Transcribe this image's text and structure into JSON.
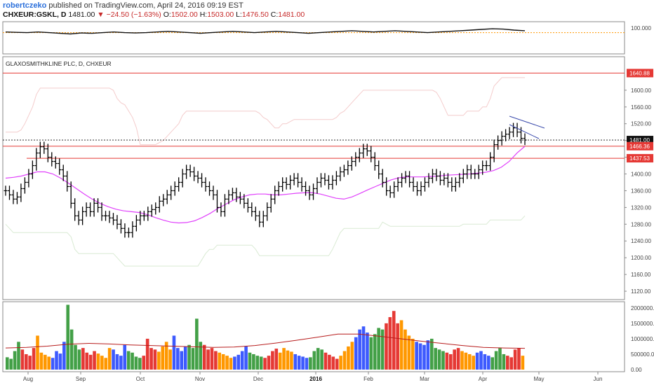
{
  "header": {
    "author": "robertczeko",
    "published_text": "published on TradingView.com, April 24, 2016 09:19 EST",
    "symbol": "CHXEUR:GSKL, D",
    "last": "1481.00",
    "change": "−24.50 (−1.63%)",
    "open_label": "O:",
    "open": "1502.00",
    "high_label": "H:",
    "high": "1503.00",
    "low_label": "L:",
    "low": "1476.50",
    "close_label": "C:",
    "close": "1481.00"
  },
  "price_pane": {
    "title": "GLAXOSMITHKLINE PLC, D, CHXEUR",
    "price_badges": [
      {
        "value": "1640.88",
        "color": "#e53935"
      },
      {
        "value": "1481.00",
        "color": "#111111"
      },
      {
        "value": "1466.36",
        "color": "#e53935"
      },
      {
        "value": "1437.53",
        "color": "#e53935"
      }
    ]
  },
  "colors": {
    "bars": "#000000",
    "ma": "#e040fb",
    "channel": "#d9ead3",
    "channel2": "#f4cccc",
    "hline": "#e53935",
    "trend": "#3949ab",
    "vol_green": "#43a047",
    "vol_red": "#e53935",
    "vol_orange": "#ff9800",
    "vol_blue": "#3d5afe",
    "vol_ma": "#b71c1c",
    "osc": "#111111",
    "osc_ref": "#ff9800"
  },
  "chart_data": [
    {
      "type": "line",
      "title": "",
      "x_ticks": [
        "Aug",
        "Sep",
        "Oct",
        "Nov",
        "Dec",
        "2016",
        "Feb",
        "Mar",
        "Apr",
        "May",
        "Jun"
      ],
      "y_ticks": [
        "100.000"
      ],
      "ylim": [
        60,
        110
      ],
      "reference_level": 93,
      "series": [
        {
          "values": [
            94,
            93.5,
            93,
            94,
            93,
            92,
            91,
            92.5,
            92,
            93,
            94,
            93,
            92.5,
            93,
            94,
            95,
            94,
            93,
            92,
            93,
            94,
            95,
            94,
            93,
            94,
            95,
            94,
            93,
            92,
            93,
            94,
            95,
            96,
            95,
            94,
            95,
            96,
            95,
            94,
            93,
            94,
            95,
            96,
            97,
            98,
            99,
            98.5,
            97,
            96
          ]
        }
      ]
    },
    {
      "type": "bar",
      "title": "",
      "x_ticks": [
        "Aug",
        "Sep",
        "Oct",
        "Nov",
        "Dec",
        "2016",
        "Feb",
        "Mar",
        "Apr",
        "May",
        "Jun"
      ],
      "y_ticks": [
        "1120.00",
        "1160.00",
        "1200.00",
        "1240.00",
        "1280.00",
        "1320.00",
        "1360.00",
        "1400.00",
        "1440.00",
        "1480.00",
        "1520.00",
        "1560.00",
        "1600.00"
      ],
      "ylim": [
        1100,
        1680
      ],
      "close": [
        1360,
        1350,
        1340,
        1345,
        1365,
        1380,
        1400,
        1420,
        1450,
        1465,
        1460,
        1440,
        1430,
        1425,
        1410,
        1395,
        1370,
        1330,
        1300,
        1290,
        1310,
        1320,
        1310,
        1330,
        1320,
        1300,
        1300,
        1295,
        1290,
        1280,
        1270,
        1260,
        1260,
        1275,
        1290,
        1300,
        1300,
        1310,
        1315,
        1320,
        1335,
        1340,
        1350,
        1360,
        1370,
        1380,
        1400,
        1410,
        1405,
        1395,
        1390,
        1380,
        1370,
        1360,
        1350,
        1320,
        1310,
        1340,
        1350,
        1355,
        1345,
        1340,
        1330,
        1320,
        1310,
        1300,
        1285,
        1300,
        1320,
        1340,
        1360,
        1370,
        1380,
        1375,
        1385,
        1390,
        1380,
        1370,
        1360,
        1350,
        1365,
        1380,
        1390,
        1385,
        1375,
        1385,
        1395,
        1405,
        1410,
        1420,
        1430,
        1440,
        1450,
        1460,
        1455,
        1440,
        1420,
        1400,
        1380,
        1360,
        1355,
        1370,
        1380,
        1390,
        1395,
        1380,
        1370,
        1360,
        1370,
        1380,
        1390,
        1400,
        1395,
        1385,
        1390,
        1380,
        1370,
        1380,
        1390,
        1400,
        1410,
        1400,
        1400,
        1410,
        1420,
        1420,
        1440,
        1470,
        1480,
        1490,
        1495,
        1500,
        1510,
        1500,
        1485,
        1481
      ],
      "moving_average": [
        1390,
        1392,
        1395,
        1400,
        1405,
        1405,
        1400,
        1390,
        1378,
        1365,
        1352,
        1340,
        1330,
        1322,
        1316,
        1312,
        1310,
        1308,
        1303,
        1296,
        1290,
        1285,
        1283,
        1284,
        1288,
        1296,
        1306,
        1318,
        1328,
        1338,
        1345,
        1350,
        1352,
        1352,
        1350,
        1350,
        1352,
        1354,
        1355,
        1355,
        1352,
        1347,
        1342,
        1340,
        1345,
        1353,
        1362,
        1370,
        1378,
        1386,
        1391,
        1393,
        1393,
        1393,
        1394,
        1395,
        1397,
        1398,
        1399,
        1400,
        1402,
        1404,
        1408,
        1416,
        1430,
        1450,
        1466
      ],
      "levels": [
        1640.88,
        1466.36,
        1437.53,
        1481.0
      ]
    },
    {
      "type": "bar",
      "title": "",
      "x_ticks": [
        "Aug",
        "Sep",
        "Oct",
        "Nov",
        "Dec",
        "2016",
        "Feb",
        "Mar",
        "Apr",
        "May",
        "Jun"
      ],
      "y_ticks": [
        "0.00",
        "500000.00",
        "1000000.00",
        "1500000.00",
        "2000000.00"
      ],
      "ylim": [
        0,
        2200000
      ],
      "values": [
        400000,
        350000,
        600000,
        900000,
        650000,
        500000,
        450000,
        700000,
        1100000,
        550000,
        480000,
        420000,
        380000,
        600000,
        520000,
        900000,
        2100000,
        1300000,
        800000,
        650000,
        700000,
        550000,
        480000,
        600000,
        520000,
        450000,
        380000,
        700000,
        650000,
        500000,
        450000,
        800000,
        600000,
        550000,
        420000,
        380000,
        450000,
        1000000,
        700000,
        650000,
        580000,
        750000,
        900000,
        650000,
        1100000,
        700000,
        600000,
        750000,
        800000,
        700000,
        1650000,
        900000,
        800000,
        650000,
        700000,
        600000,
        550000,
        500000,
        450000,
        380000,
        420000,
        480000,
        600000,
        750000,
        550000,
        500000,
        450000,
        420000,
        380000,
        450000,
        600000,
        680000,
        550000,
        700000,
        620000,
        580000,
        500000,
        450000,
        420000,
        380000,
        400000,
        600000,
        700000,
        650000,
        550000,
        480000,
        420000,
        350000,
        450000,
        600000,
        750000,
        900000,
        1050000,
        1300000,
        1400000,
        1200000,
        1050000,
        1150000,
        1350000,
        1300000,
        1500000,
        1700000,
        1900000,
        1500000,
        1600000,
        1300000,
        1100000,
        1000000,
        900000,
        850000,
        800000,
        950000,
        1000000,
        700000,
        650000,
        600000,
        550000,
        500000,
        650000,
        700000,
        600000,
        550000,
        500000,
        450000,
        550000,
        600000,
        500000,
        450000,
        400000,
        600000,
        700000,
        500000,
        450000,
        400000,
        650000,
        700000,
        450000
      ],
      "volume_ma": [
        700000,
        720000,
        760000,
        820000,
        850000,
        830000,
        800000,
        780000,
        760000,
        740000,
        720000,
        730000,
        780000,
        860000,
        950000,
        1050000,
        1150000,
        1150000,
        1080000,
        1000000,
        920000,
        850000,
        780000,
        720000,
        700000,
        690000
      ]
    }
  ]
}
